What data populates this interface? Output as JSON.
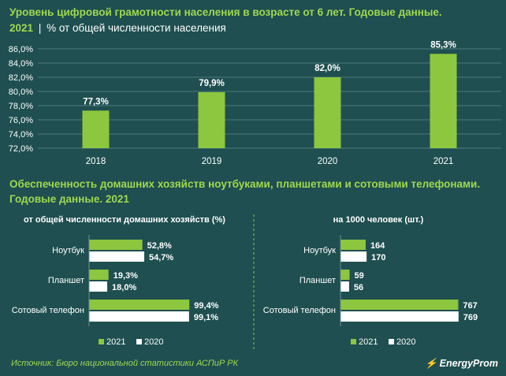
{
  "header": {
    "title": "Уровень цифровой грамотности населения в возрасте от 6 лет. Годовые данные.",
    "year": "2021",
    "separator": "|",
    "unit": "% от общей численности населения"
  },
  "section2": {
    "title_line1": "Обеспеченность домашних хозяйств ноутбуками, планшетами и сотовыми телефонами.",
    "title_line2": "Годовые данные. 2021"
  },
  "footer": {
    "source": "Источник: Бюро национальной статистики АСПиР РК",
    "logo": "EnergyProm",
    "logo_icon": "lightning-icon"
  },
  "colors": {
    "green": "#8dc63f",
    "white": "#ffffff",
    "bg": "#1f4f50",
    "title": "#9fd850"
  },
  "chart_data": [
    {
      "type": "bar",
      "categories": [
        "2018",
        "2019",
        "2020",
        "2021"
      ],
      "values": [
        77.3,
        79.9,
        82.0,
        85.3
      ],
      "value_labels": [
        "77,3%",
        "79,9%",
        "82,0%",
        "85,3%"
      ],
      "yticks": [
        72.0,
        74.0,
        76.0,
        78.0,
        80.0,
        82.0,
        84.0,
        86.0
      ],
      "ytick_labels": [
        "72,0%",
        "74,0%",
        "76,0%",
        "78,0%",
        "80,0%",
        "82,0%",
        "84,0%",
        "86,0%"
      ],
      "ylim": [
        72,
        86
      ],
      "grid": true
    },
    {
      "type": "bar",
      "orientation": "horizontal",
      "title": "от общей численности домашних хозяйств (%)",
      "categories": [
        "Ноутбук",
        "Планшет",
        "Сотовый телефон"
      ],
      "series": [
        {
          "name": "2021",
          "values": [
            52.8,
            19.3,
            99.4
          ],
          "labels": [
            "52,8%",
            "19,3%",
            "99,4%"
          ]
        },
        {
          "name": "2020",
          "values": [
            54.7,
            18.0,
            99.1
          ],
          "labels": [
            "54,7%",
            "18,0%",
            "99,1%"
          ]
        }
      ],
      "xlim": [
        0,
        100
      ],
      "legend": "bottom"
    },
    {
      "type": "bar",
      "orientation": "horizontal",
      "title": "на 1000 человек (шт.)",
      "categories": [
        "Ноутбук",
        "Планшет",
        "Сотовый телефон"
      ],
      "series": [
        {
          "name": "2021",
          "values": [
            164,
            59,
            767
          ],
          "labels": [
            "164",
            "59",
            "767"
          ]
        },
        {
          "name": "2020",
          "values": [
            170,
            56,
            769
          ],
          "labels": [
            "170",
            "56",
            "769"
          ]
        }
      ],
      "xlim": [
        0,
        770
      ],
      "legend": "bottom"
    }
  ]
}
